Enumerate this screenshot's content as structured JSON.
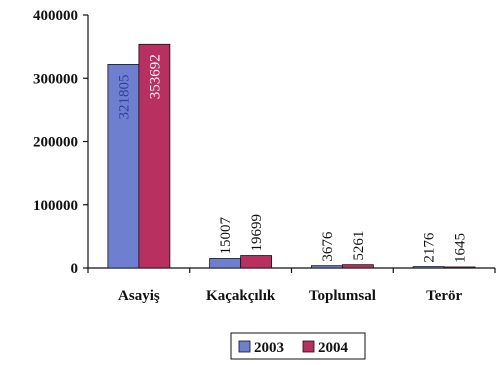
{
  "chart_data": {
    "type": "bar",
    "categories": [
      "Asayiş",
      "Kaçakçılık",
      "Toplumsal",
      "Terör"
    ],
    "series": [
      {
        "name": "2003",
        "values": [
          321805,
          15007,
          3676,
          2176
        ],
        "color": "#6f7fd0",
        "label_color": "#2e3f9e"
      },
      {
        "name": "2004",
        "values": [
          353692,
          19699,
          5261,
          1645
        ],
        "color": "#b8305f",
        "label_color": "#ffffff"
      }
    ],
    "ylim": [
      0,
      400000
    ],
    "yticks": [
      "0",
      "100000",
      "200000",
      "300000",
      "400000"
    ],
    "yticks_values": [
      0,
      100000,
      200000,
      300000,
      400000
    ],
    "grid": false,
    "legend": "bottom",
    "outline_color": "#111111",
    "bar_outside_label_color": "#111111"
  }
}
